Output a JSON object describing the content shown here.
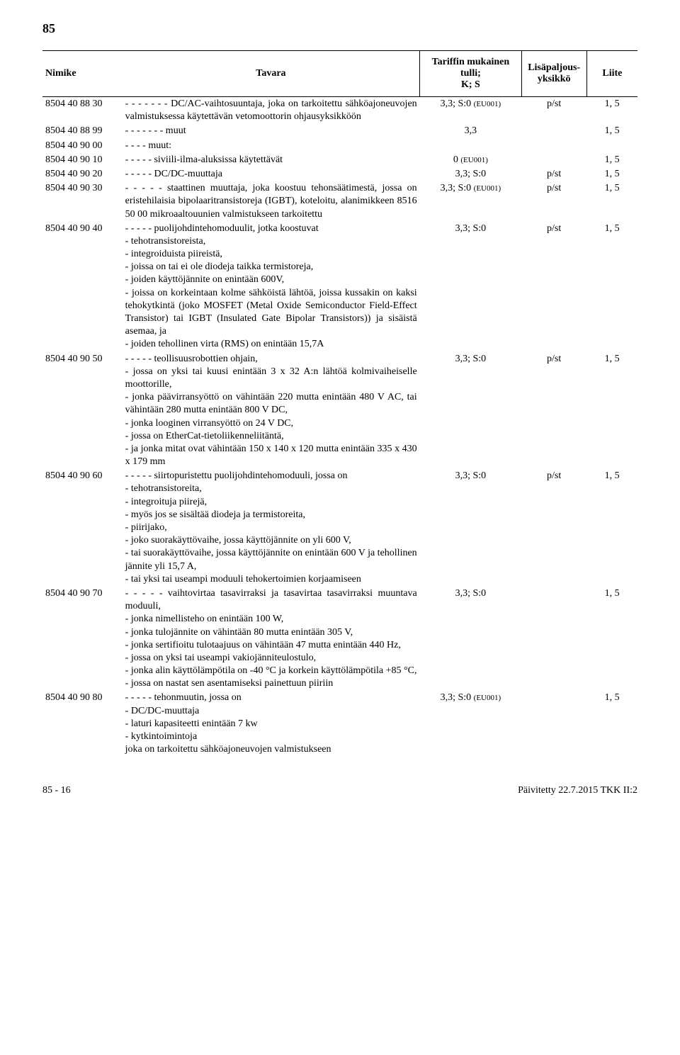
{
  "page_number_top": "85",
  "columns": {
    "code": "Nimike",
    "desc": "Tavara",
    "tariff_line1": "Tariffin mukainen tulli;",
    "tariff_line2": "K; S",
    "unit_line1": "Lisäpaljous-",
    "unit_line2": "yksikkö",
    "annex": "Liite"
  },
  "col_widths": {
    "code": "110px",
    "desc": "410px",
    "tariff": "140px",
    "unit": "90px",
    "annex": "70px"
  },
  "rows": [
    {
      "code": "8504 40 88 30",
      "desc": "- - - - - - - DC/AC-vaihtosuuntaja, joka on tarkoitettu sähköajoneuvojen valmistuksessa käytettävän vetomoottorin ohjausyksikköön",
      "tariff_plain": "3,3; S:0 ",
      "tariff_small": "(EU001)",
      "unit": "p/st",
      "annex": "1, 5"
    },
    {
      "code": "8504 40 88 99",
      "desc": "- - - - - - - muut",
      "tariff_plain": "3,3",
      "tariff_small": "",
      "unit": "",
      "annex": "1, 5"
    },
    {
      "code": "8504 40 90 00",
      "desc": "- - - - muut:",
      "tariff_plain": "",
      "tariff_small": "",
      "unit": "",
      "annex": ""
    },
    {
      "code": "8504 40 90 10",
      "desc": "- - - - - siviili-ilma-aluksissa käytettävät",
      "tariff_plain": "0 ",
      "tariff_small": "(EU001)",
      "unit": "",
      "annex": "1, 5"
    },
    {
      "code": "8504 40 90 20",
      "desc": "- - - - - DC/DC-muuttaja",
      "tariff_plain": "3,3; S:0",
      "tariff_small": "",
      "unit": "p/st",
      "annex": "1, 5"
    },
    {
      "code": "8504 40 90 30",
      "desc": "- - - - - staattinen muuttaja, joka koostuu tehonsäätimestä, jossa on eristehilaisia bipolaaritransistoreja (IGBT), koteloitu, alanimikkeen 8516 50 00 mikroaaltouunien valmistukseen tarkoitettu",
      "tariff_plain": "3,3; S:0 ",
      "tariff_small": "(EU001)",
      "unit": "p/st",
      "annex": "1, 5"
    },
    {
      "code": "8504 40 90 40",
      "desc": "- - - - - puolijohdintehomoduulit, jotka koostuvat\n- tehotransistoreista,\n- integroiduista piireistä,\n- joissa on tai ei ole diodeja taikka termistoreja,\n- joiden käyttöjännite on enintään 600V,\n- joissa on korkeintaan kolme sähköistä lähtöä, joissa kussakin on kaksi tehokytkintä (joko MOSFET (Metal Oxide Semiconductor Field-Effect Transistor) tai IGBT (Insulated Gate Bipolar Transistors)) ja sisäistä asemaa, ja\n- joiden tehollinen virta (RMS) on enintään 15,7A",
      "tariff_plain": "3,3; S:0",
      "tariff_small": "",
      "unit": "p/st",
      "annex": "1, 5"
    },
    {
      "code": "8504 40 90 50",
      "desc": "- - - - - teollisuusrobottien ohjain,\n- jossa on yksi tai kuusi enintään 3 x 32 A:n lähtöä kolmivaiheiselle moottorille,\n- jonka päävirransyöttö on vähintään 220 mutta enintään 480 V AC, tai vähintään 280 mutta enintään 800 V DC,\n- jonka looginen virransyöttö on 24 V DC,\n- jossa on EtherCat-tietoliikenneliitäntä,\n- ja jonka mitat ovat vähintään 150 x 140 x 120 mutta enintään 335 x 430 x 179 mm",
      "tariff_plain": "3,3; S:0",
      "tariff_small": "",
      "unit": "p/st",
      "annex": "1, 5"
    },
    {
      "code": "8504 40 90 60",
      "desc": "- - - - - siirtopuristettu puolijohdintehomoduuli, jossa on\n- tehotransistoreita,\n- integroituja piirejä,\n- myös jos se sisältää diodeja ja termistoreita,\n- piirijako,\n- joko suorakäyttövaihe, jossa käyttöjännite on yli 600 V,\n- tai suorakäyttövaihe, jossa käyttöjännite on enintään 600 V ja tehollinen jännite yli 15,7 A,\n- tai yksi tai useampi moduuli tehokertoimien korjaamiseen",
      "tariff_plain": "3,3; S:0",
      "tariff_small": "",
      "unit": "p/st",
      "annex": "1, 5"
    },
    {
      "code": "8504 40 90 70",
      "desc": "- - - - - vaihtovirtaa tasavirraksi ja tasavirtaa tasavirraksi muuntava moduuli,\n- jonka nimellisteho on enintään 100 W,\n- jonka tulojännite on vähintään 80 mutta enintään 305 V,\n- jonka sertifioitu tulotaajuus on vähintään 47 mutta enintään 440 Hz,\n- jossa on yksi tai useampi vakiojänniteulostulo,\n- jonka alin käyttölämpötila on -40 °C ja korkein käyttölämpötila +85 °C,\n- jossa on nastat sen asentamiseksi painettuun piiriin",
      "tariff_plain": "3,3; S:0",
      "tariff_small": "",
      "unit": "",
      "annex": "1, 5"
    },
    {
      "code": "8504 40 90 80",
      "desc": "- - - - - tehonmuutin, jossa on\n- DC/DC-muuttaja\n- laturi kapasiteetti enintään 7 kw\n- kytkintoimintoja\njoka on tarkoitettu sähköajoneuvojen valmistukseen",
      "tariff_plain": "3,3; S:0 ",
      "tariff_small": "(EU001)",
      "unit": "",
      "annex": "1, 5"
    }
  ],
  "footer": {
    "left": "85 - 16",
    "right": "Päivitetty 22.7.2015 TKK II:2"
  }
}
